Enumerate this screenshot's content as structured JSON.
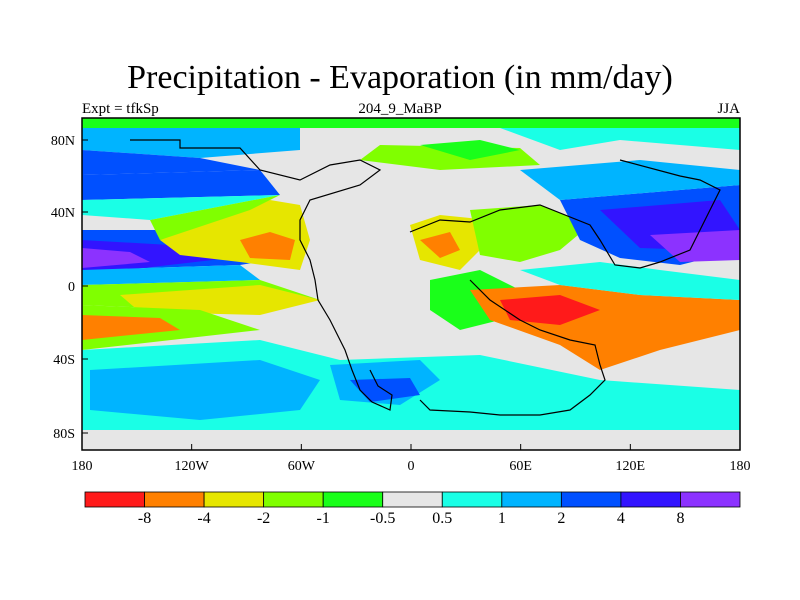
{
  "title": "Precipitation - Evaporation (in mm/day)",
  "subtitle_left": "Expt = tfkSp",
  "subtitle_center": "204_9_MaBP",
  "subtitle_right": "JJA",
  "lat_ticks": [
    "80N",
    "40N",
    "0",
    "40S",
    "80S"
  ],
  "lon_ticks": [
    "180",
    "120W",
    "60W",
    "0",
    "60E",
    "120E",
    "180"
  ],
  "colorbar": {
    "colors": [
      "#ff1a1a",
      "#ff8000",
      "#e6e600",
      "#80ff00",
      "#1aff1a",
      "#e6e6e6",
      "#1affe6",
      "#00b4ff",
      "#0050ff",
      "#3214ff",
      "#8c32ff"
    ],
    "labels": [
      "-8",
      "-4",
      "-2",
      "-1",
      "-0.5",
      "0.5",
      "1",
      "2",
      "4",
      "8"
    ]
  }
}
